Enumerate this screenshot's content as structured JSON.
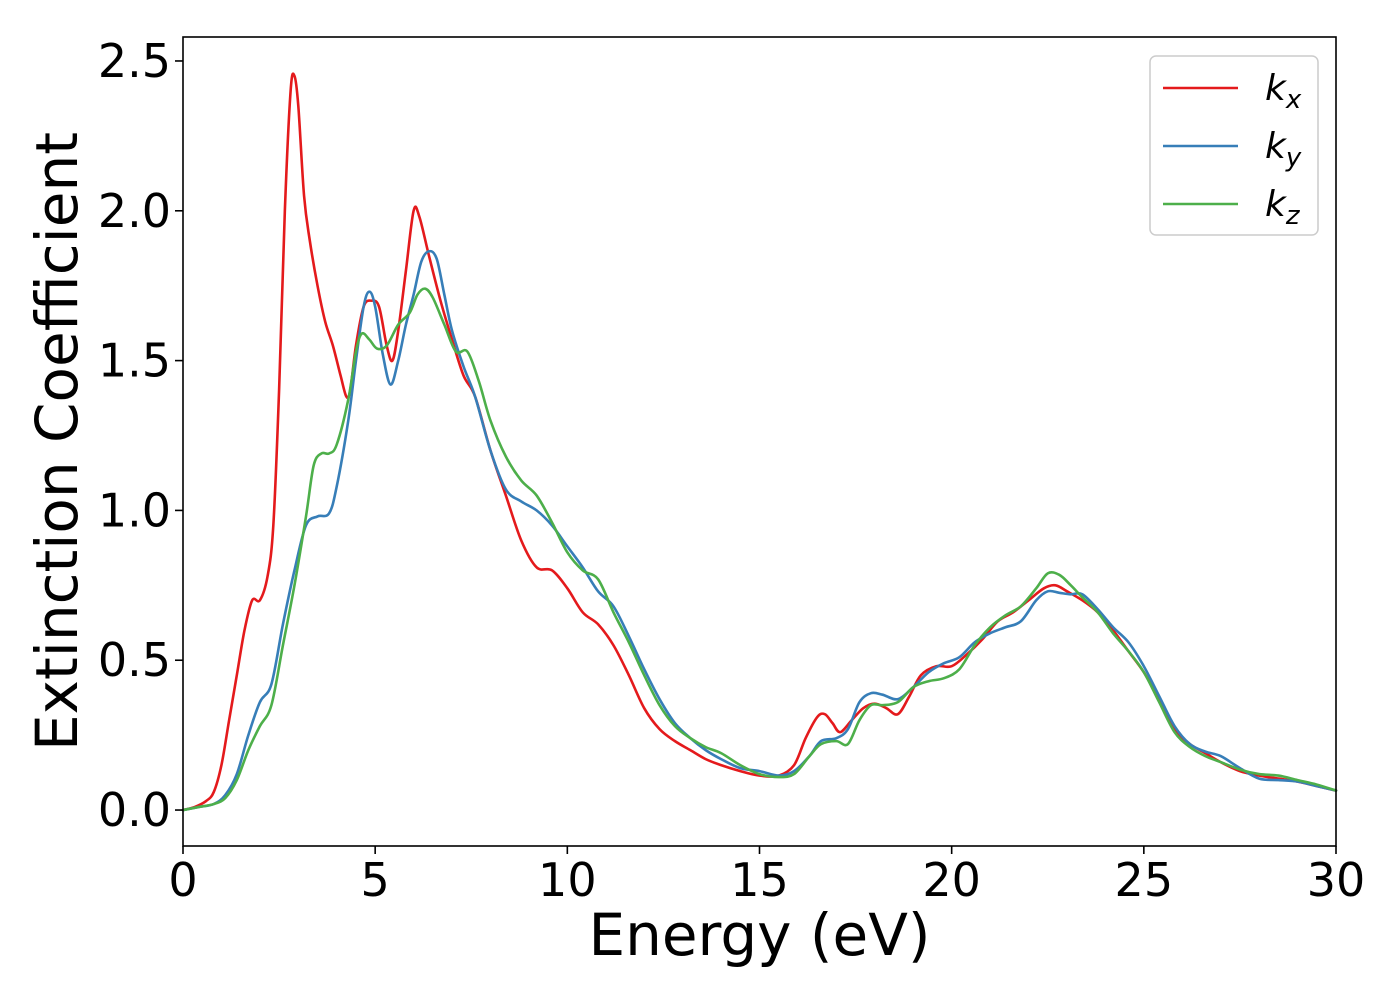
{
  "chart_data": {
    "type": "line",
    "title": "",
    "xlabel": "Energy (eV)",
    "ylabel": "Extinction Coefficient",
    "xlim": [
      0,
      30
    ],
    "ylim": [
      -0.12,
      2.58
    ],
    "xticks": [
      0,
      5,
      10,
      15,
      20,
      25,
      30
    ],
    "yticks": [
      0.0,
      0.5,
      1.0,
      1.5,
      2.0,
      2.5
    ],
    "xtick_labels": [
      "0",
      "5",
      "10",
      "15",
      "20",
      "25",
      "30"
    ],
    "ytick_labels": [
      "0.0",
      "0.5",
      "1.0",
      "1.5",
      "2.0",
      "2.5"
    ],
    "grid": false,
    "legend_position": "top-right",
    "series": [
      {
        "name": "k_x",
        "label_base": "k",
        "label_sub": "x",
        "color": "#e41a1c",
        "points": [
          [
            0,
            0
          ],
          [
            0.3,
            0.01
          ],
          [
            0.6,
            0.03
          ],
          [
            0.8,
            0.06
          ],
          [
            1.0,
            0.15
          ],
          [
            1.2,
            0.3
          ],
          [
            1.4,
            0.45
          ],
          [
            1.6,
            0.6
          ],
          [
            1.8,
            0.7
          ],
          [
            2.0,
            0.7
          ],
          [
            2.2,
            0.78
          ],
          [
            2.35,
            0.95
          ],
          [
            2.5,
            1.4
          ],
          [
            2.65,
            2.0
          ],
          [
            2.8,
            2.4
          ],
          [
            2.9,
            2.45
          ],
          [
            3.0,
            2.35
          ],
          [
            3.15,
            2.05
          ],
          [
            3.3,
            1.9
          ],
          [
            3.5,
            1.75
          ],
          [
            3.7,
            1.63
          ],
          [
            3.9,
            1.55
          ],
          [
            4.1,
            1.45
          ],
          [
            4.25,
            1.38
          ],
          [
            4.35,
            1.4
          ],
          [
            4.5,
            1.55
          ],
          [
            4.7,
            1.68
          ],
          [
            4.9,
            1.7
          ],
          [
            5.1,
            1.68
          ],
          [
            5.3,
            1.55
          ],
          [
            5.45,
            1.5
          ],
          [
            5.6,
            1.6
          ],
          [
            5.8,
            1.8
          ],
          [
            6.0,
            2.0
          ],
          [
            6.15,
            1.98
          ],
          [
            6.4,
            1.85
          ],
          [
            6.7,
            1.7
          ],
          [
            7.0,
            1.57
          ],
          [
            7.3,
            1.45
          ],
          [
            7.6,
            1.38
          ],
          [
            8.0,
            1.2
          ],
          [
            8.4,
            1.05
          ],
          [
            8.8,
            0.9
          ],
          [
            9.2,
            0.81
          ],
          [
            9.6,
            0.8
          ],
          [
            10.0,
            0.74
          ],
          [
            10.4,
            0.66
          ],
          [
            10.8,
            0.62
          ],
          [
            11.2,
            0.55
          ],
          [
            11.6,
            0.45
          ],
          [
            12.0,
            0.34
          ],
          [
            12.4,
            0.27
          ],
          [
            12.8,
            0.23
          ],
          [
            13.2,
            0.2
          ],
          [
            13.6,
            0.17
          ],
          [
            14.0,
            0.15
          ],
          [
            14.5,
            0.13
          ],
          [
            15.0,
            0.115
          ],
          [
            15.5,
            0.115
          ],
          [
            15.9,
            0.15
          ],
          [
            16.2,
            0.24
          ],
          [
            16.5,
            0.31
          ],
          [
            16.7,
            0.32
          ],
          [
            16.9,
            0.29
          ],
          [
            17.1,
            0.26
          ],
          [
            17.4,
            0.3
          ],
          [
            17.7,
            0.34
          ],
          [
            18.0,
            0.355
          ],
          [
            18.3,
            0.34
          ],
          [
            18.6,
            0.32
          ],
          [
            18.9,
            0.38
          ],
          [
            19.2,
            0.45
          ],
          [
            19.6,
            0.48
          ],
          [
            20.0,
            0.48
          ],
          [
            20.4,
            0.52
          ],
          [
            20.8,
            0.57
          ],
          [
            21.2,
            0.63
          ],
          [
            21.6,
            0.66
          ],
          [
            22.0,
            0.7
          ],
          [
            22.4,
            0.74
          ],
          [
            22.7,
            0.75
          ],
          [
            23.0,
            0.73
          ],
          [
            23.4,
            0.7
          ],
          [
            23.8,
            0.66
          ],
          [
            24.2,
            0.6
          ],
          [
            24.6,
            0.53
          ],
          [
            25.0,
            0.46
          ],
          [
            25.4,
            0.37
          ],
          [
            25.8,
            0.27
          ],
          [
            26.2,
            0.22
          ],
          [
            26.6,
            0.19
          ],
          [
            27.0,
            0.16
          ],
          [
            27.5,
            0.13
          ],
          [
            28.0,
            0.115
          ],
          [
            28.5,
            0.105
          ],
          [
            29.0,
            0.095
          ],
          [
            29.5,
            0.08
          ],
          [
            30.0,
            0.065
          ]
        ]
      },
      {
        "name": "k_y",
        "label_base": "k",
        "label_sub": "y",
        "color": "#377eb8",
        "points": [
          [
            0,
            0
          ],
          [
            0.4,
            0.01
          ],
          [
            0.8,
            0.02
          ],
          [
            1.1,
            0.05
          ],
          [
            1.4,
            0.12
          ],
          [
            1.7,
            0.25
          ],
          [
            2.0,
            0.36
          ],
          [
            2.3,
            0.42
          ],
          [
            2.6,
            0.62
          ],
          [
            2.9,
            0.8
          ],
          [
            3.2,
            0.95
          ],
          [
            3.5,
            0.98
          ],
          [
            3.8,
            0.99
          ],
          [
            4.0,
            1.08
          ],
          [
            4.3,
            1.3
          ],
          [
            4.5,
            1.5
          ],
          [
            4.7,
            1.68
          ],
          [
            4.85,
            1.73
          ],
          [
            5.0,
            1.68
          ],
          [
            5.2,
            1.52
          ],
          [
            5.4,
            1.42
          ],
          [
            5.6,
            1.5
          ],
          [
            5.8,
            1.62
          ],
          [
            6.0,
            1.72
          ],
          [
            6.2,
            1.83
          ],
          [
            6.4,
            1.865
          ],
          [
            6.6,
            1.84
          ],
          [
            6.8,
            1.72
          ],
          [
            7.0,
            1.6
          ],
          [
            7.3,
            1.48
          ],
          [
            7.6,
            1.38
          ],
          [
            8.0,
            1.2
          ],
          [
            8.4,
            1.07
          ],
          [
            8.8,
            1.03
          ],
          [
            9.2,
            1.0
          ],
          [
            9.6,
            0.95
          ],
          [
            10.0,
            0.88
          ],
          [
            10.4,
            0.81
          ],
          [
            10.8,
            0.73
          ],
          [
            11.2,
            0.68
          ],
          [
            11.6,
            0.58
          ],
          [
            12.0,
            0.47
          ],
          [
            12.4,
            0.37
          ],
          [
            12.8,
            0.29
          ],
          [
            13.2,
            0.24
          ],
          [
            13.6,
            0.2
          ],
          [
            14.0,
            0.17
          ],
          [
            14.5,
            0.14
          ],
          [
            15.0,
            0.13
          ],
          [
            15.5,
            0.115
          ],
          [
            15.9,
            0.13
          ],
          [
            16.3,
            0.18
          ],
          [
            16.6,
            0.23
          ],
          [
            17.0,
            0.24
          ],
          [
            17.3,
            0.27
          ],
          [
            17.6,
            0.36
          ],
          [
            17.9,
            0.39
          ],
          [
            18.2,
            0.385
          ],
          [
            18.6,
            0.37
          ],
          [
            19.0,
            0.41
          ],
          [
            19.4,
            0.46
          ],
          [
            19.8,
            0.49
          ],
          [
            20.2,
            0.51
          ],
          [
            20.6,
            0.56
          ],
          [
            21.0,
            0.59
          ],
          [
            21.4,
            0.61
          ],
          [
            21.8,
            0.63
          ],
          [
            22.2,
            0.7
          ],
          [
            22.5,
            0.73
          ],
          [
            22.8,
            0.725
          ],
          [
            23.1,
            0.72
          ],
          [
            23.4,
            0.72
          ],
          [
            23.8,
            0.67
          ],
          [
            24.2,
            0.61
          ],
          [
            24.6,
            0.56
          ],
          [
            25.0,
            0.48
          ],
          [
            25.4,
            0.38
          ],
          [
            25.8,
            0.28
          ],
          [
            26.2,
            0.22
          ],
          [
            26.6,
            0.195
          ],
          [
            27.0,
            0.18
          ],
          [
            27.5,
            0.14
          ],
          [
            28.0,
            0.105
          ],
          [
            28.5,
            0.1
          ],
          [
            29.0,
            0.095
          ],
          [
            29.5,
            0.08
          ],
          [
            30.0,
            0.065
          ]
        ]
      },
      {
        "name": "k_z",
        "label_base": "k",
        "label_sub": "z",
        "color": "#4daf4a",
        "points": [
          [
            0,
            0
          ],
          [
            0.4,
            0.01
          ],
          [
            0.8,
            0.02
          ],
          [
            1.1,
            0.04
          ],
          [
            1.4,
            0.1
          ],
          [
            1.7,
            0.2
          ],
          [
            2.0,
            0.28
          ],
          [
            2.3,
            0.35
          ],
          [
            2.6,
            0.55
          ],
          [
            2.9,
            0.75
          ],
          [
            3.2,
            0.98
          ],
          [
            3.4,
            1.15
          ],
          [
            3.6,
            1.19
          ],
          [
            3.8,
            1.19
          ],
          [
            4.0,
            1.22
          ],
          [
            4.3,
            1.37
          ],
          [
            4.5,
            1.53
          ],
          [
            4.65,
            1.59
          ],
          [
            4.85,
            1.57
          ],
          [
            5.05,
            1.54
          ],
          [
            5.3,
            1.55
          ],
          [
            5.6,
            1.62
          ],
          [
            5.9,
            1.66
          ],
          [
            6.1,
            1.72
          ],
          [
            6.3,
            1.74
          ],
          [
            6.5,
            1.71
          ],
          [
            6.8,
            1.62
          ],
          [
            7.1,
            1.53
          ],
          [
            7.4,
            1.53
          ],
          [
            7.7,
            1.43
          ],
          [
            8.0,
            1.3
          ],
          [
            8.4,
            1.18
          ],
          [
            8.8,
            1.1
          ],
          [
            9.2,
            1.05
          ],
          [
            9.6,
            0.96
          ],
          [
            10.0,
            0.86
          ],
          [
            10.4,
            0.8
          ],
          [
            10.8,
            0.77
          ],
          [
            11.2,
            0.66
          ],
          [
            11.6,
            0.56
          ],
          [
            12.0,
            0.45
          ],
          [
            12.4,
            0.35
          ],
          [
            12.8,
            0.28
          ],
          [
            13.2,
            0.24
          ],
          [
            13.6,
            0.21
          ],
          [
            14.0,
            0.19
          ],
          [
            14.5,
            0.15
          ],
          [
            15.0,
            0.12
          ],
          [
            15.5,
            0.11
          ],
          [
            15.9,
            0.12
          ],
          [
            16.3,
            0.18
          ],
          [
            16.6,
            0.22
          ],
          [
            17.0,
            0.23
          ],
          [
            17.3,
            0.22
          ],
          [
            17.6,
            0.3
          ],
          [
            17.9,
            0.35
          ],
          [
            18.2,
            0.35
          ],
          [
            18.6,
            0.36
          ],
          [
            19.0,
            0.41
          ],
          [
            19.4,
            0.43
          ],
          [
            19.8,
            0.44
          ],
          [
            20.2,
            0.47
          ],
          [
            20.6,
            0.55
          ],
          [
            21.0,
            0.61
          ],
          [
            21.4,
            0.65
          ],
          [
            21.8,
            0.68
          ],
          [
            22.2,
            0.74
          ],
          [
            22.5,
            0.79
          ],
          [
            22.8,
            0.785
          ],
          [
            23.1,
            0.75
          ],
          [
            23.4,
            0.71
          ],
          [
            23.8,
            0.66
          ],
          [
            24.2,
            0.59
          ],
          [
            24.6,
            0.53
          ],
          [
            25.0,
            0.46
          ],
          [
            25.4,
            0.36
          ],
          [
            25.8,
            0.26
          ],
          [
            26.2,
            0.21
          ],
          [
            26.6,
            0.18
          ],
          [
            27.0,
            0.16
          ],
          [
            27.5,
            0.135
          ],
          [
            28.0,
            0.12
          ],
          [
            28.5,
            0.115
          ],
          [
            29.0,
            0.1
          ],
          [
            29.5,
            0.085
          ],
          [
            30.0,
            0.065
          ]
        ]
      }
    ]
  }
}
